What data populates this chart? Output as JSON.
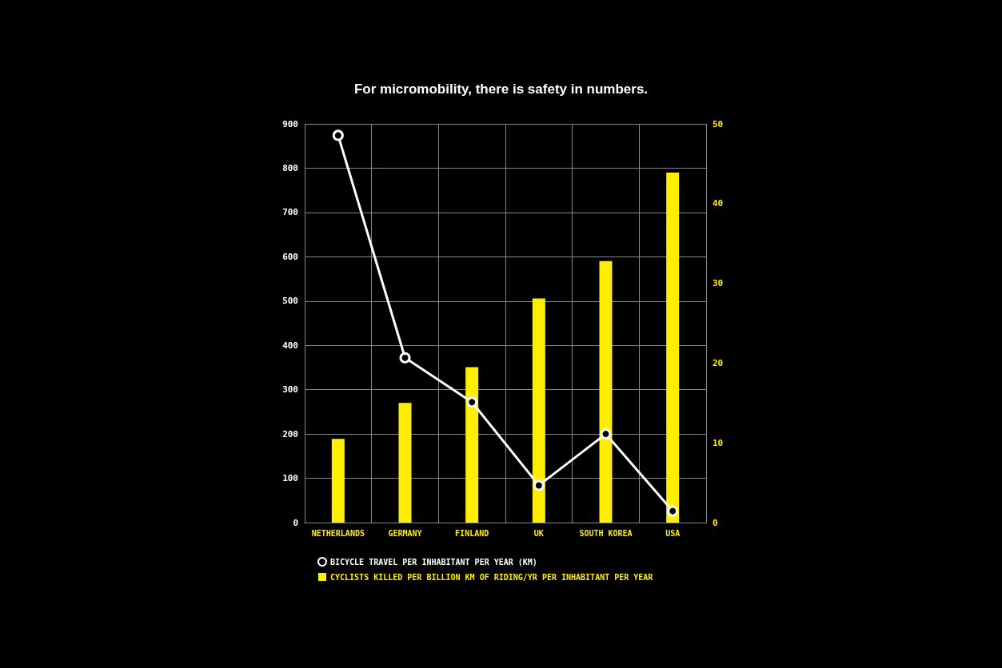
{
  "chart_data": {
    "type": "bar",
    "title": "For micromobility, there is safety in numbers.",
    "categories": [
      "NETHERLANDS",
      "GERMANY",
      "FINLAND",
      "UK",
      "SOUTH KOREA",
      "USA"
    ],
    "series": [
      {
        "name": "BICYCLE TRAVEL PER INHABITANT PER YEAR (KM)",
        "type": "line",
        "color": "#ffffff",
        "values": [
          874,
          372,
          272,
          84,
          200,
          26
        ]
      },
      {
        "name": "CYCLISTS KILLED PER BILLION KM OF RIDING/YR PER INHABITANT PER YEAR",
        "axis": "y2",
        "color": "#ffee00",
        "values": [
          10.5,
          15.0,
          19.5,
          28.1,
          32.8,
          43.9
        ]
      }
    ],
    "ylim": [
      0,
      900
    ],
    "yticks": [
      0,
      100,
      200,
      300,
      400,
      500,
      600,
      700,
      800,
      900
    ],
    "y2lim": [
      0,
      50
    ],
    "y2ticks": [
      0,
      10,
      20,
      30,
      40,
      50
    ],
    "grid": true,
    "legend": "bottom",
    "marker": "circle",
    "line_style": "solid"
  }
}
